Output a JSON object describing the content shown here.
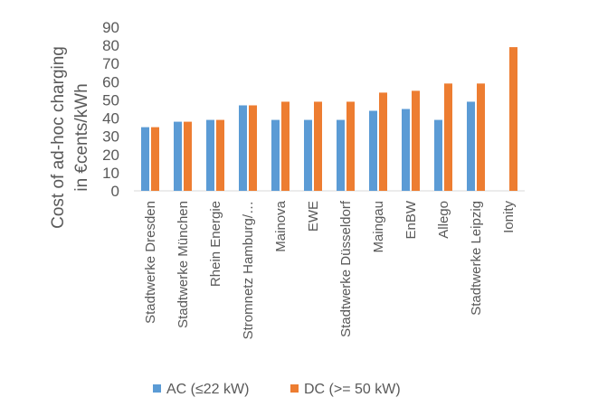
{
  "chart_data": {
    "type": "bar",
    "ylabel_lines": [
      "Cost of ad-hoc charging",
      "in €cents/kWh"
    ],
    "ylim": [
      0,
      90
    ],
    "yticks": [
      0,
      10,
      20,
      30,
      40,
      50,
      60,
      70,
      80,
      90
    ],
    "grid": false,
    "legend_position": "bottom",
    "categories": [
      "Stadtwerke Dresden",
      "Stadtwerke München",
      "Rhein Energie",
      "Stromnetz Hamburg/…",
      "Mainova",
      "EWE",
      "Stadtwerke Düsseldorf",
      "Maingau",
      "EnBW",
      "Allego",
      "Stadtwerke Leipzig",
      "Ionity"
    ],
    "series": [
      {
        "name": "AC (≤22 kW)",
        "color": "#5B9BD5",
        "values": [
          35,
          38,
          39,
          47,
          39,
          39,
          39,
          44,
          45,
          39,
          49,
          null
        ]
      },
      {
        "name": "DC (>= 50 kW)",
        "color": "#ED7D31",
        "values": [
          35,
          38,
          39,
          47,
          49,
          49,
          49,
          54,
          55,
          59,
          59,
          79
        ]
      }
    ]
  }
}
